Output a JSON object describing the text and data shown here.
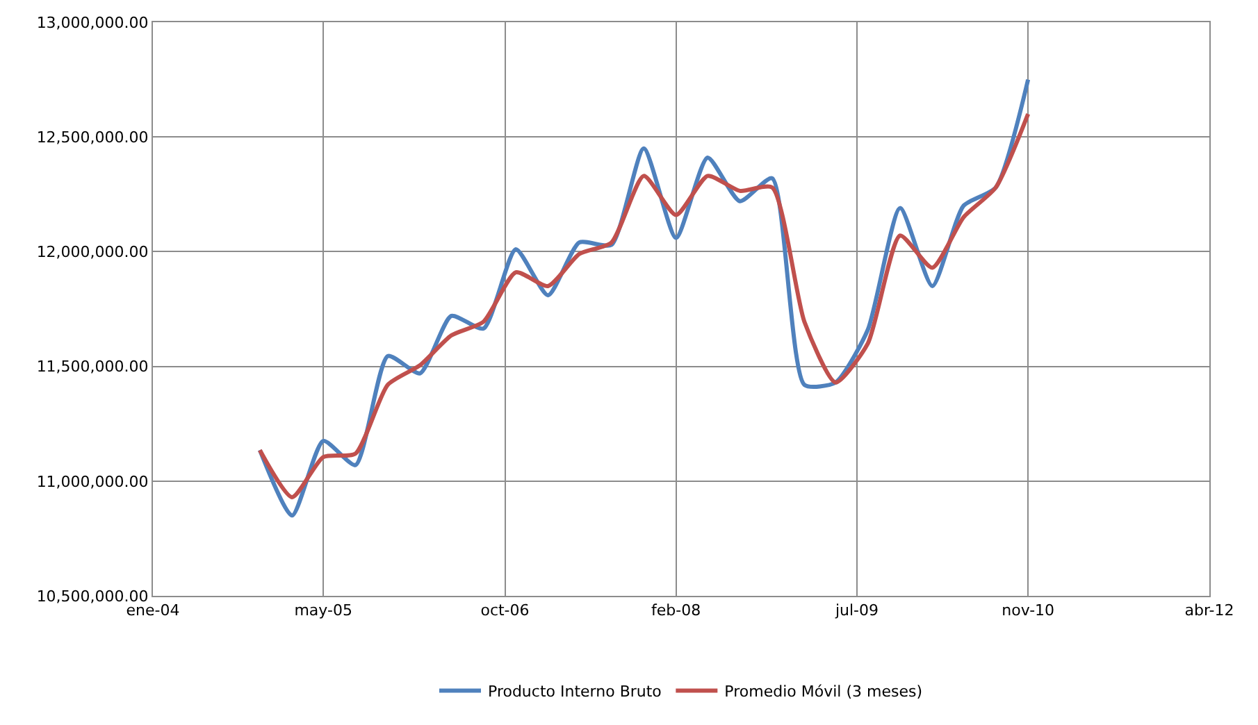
{
  "chart_data": {
    "type": "line",
    "x": [
      "2004-11",
      "2005-02",
      "2005-05",
      "2005-08",
      "2005-11",
      "2006-02",
      "2006-05",
      "2006-08",
      "2006-11",
      "2007-02",
      "2007-05",
      "2007-08",
      "2007-11",
      "2008-02",
      "2008-05",
      "2008-08",
      "2008-11",
      "2009-02",
      "2009-05",
      "2009-08",
      "2009-11",
      "2010-02",
      "2010-05",
      "2010-08",
      "2010-11"
    ],
    "series": [
      {
        "name": "Producto Interno Bruto",
        "color": "#4f81bd",
        "values": [
          11135000,
          10850000,
          11175000,
          11070000,
          11545000,
          11470000,
          11720000,
          11665000,
          12010000,
          11810000,
          12040000,
          12030000,
          12450000,
          12060000,
          12410000,
          12220000,
          12320000,
          11420000,
          11430000,
          11660000,
          12190000,
          11850000,
          12200000,
          12280000,
          12750000
        ]
      },
      {
        "name": "Promedio Móvil (3 meses)",
        "color": "#c0504d",
        "values": [
          11135000,
          10930000,
          11105000,
          11120000,
          11420000,
          11505000,
          11635000,
          11695000,
          11910000,
          11850000,
          11990000,
          12040000,
          12330000,
          12160000,
          12330000,
          12265000,
          12280000,
          11695000,
          11430000,
          11600000,
          12070000,
          11930000,
          12150000,
          12280000,
          12600000
        ]
      }
    ],
    "xlim": [
      "2004-01-01",
      "2012-04-01"
    ],
    "xticks": [
      {
        "value": "2004-01-01",
        "label": "ene-04"
      },
      {
        "value": "2005-05-01",
        "label": "may-05"
      },
      {
        "value": "2006-10-01",
        "label": "oct-06"
      },
      {
        "value": "2008-02-01",
        "label": "feb-08"
      },
      {
        "value": "2009-07-01",
        "label": "jul-09"
      },
      {
        "value": "2010-11-01",
        "label": "nov-10"
      },
      {
        "value": "2012-04-01",
        "label": "abr-12"
      }
    ],
    "ylim": [
      10500000,
      13000000
    ],
    "yticks": [
      {
        "value": 10500000,
        "label": "10,500,000.00"
      },
      {
        "value": 11000000,
        "label": "11,000,000.00"
      },
      {
        "value": 11500000,
        "label": "11,500,000.00"
      },
      {
        "value": 12000000,
        "label": "12,000,000.00"
      },
      {
        "value": 12500000,
        "label": "12,500,000.00"
      },
      {
        "value": 13000000,
        "label": "13,000,000.00"
      }
    ],
    "grid": true,
    "legend": "bottom",
    "marker": "none",
    "line_style": "solid"
  }
}
